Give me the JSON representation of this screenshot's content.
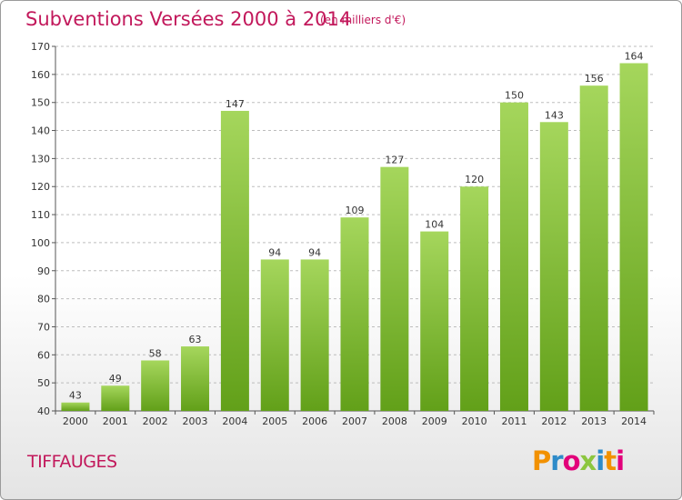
{
  "header": {
    "title": "Subventions Versées 2000 à 2014",
    "subtitle": "(en milliers d'€)"
  },
  "footer": {
    "commune": "TIFFAUGES",
    "logo_text": "Proxiti",
    "logo_colors": [
      "#f29100",
      "#2e8bc9",
      "#e2007a",
      "#8cc63f",
      "#2e8bc9",
      "#f29100",
      "#e2007a"
    ]
  },
  "colors": {
    "bar_light": "#a5d65c",
    "bar_dark": "#62a019",
    "accent": "#c2185b"
  },
  "chart_data": {
    "type": "bar",
    "title": "Subventions Versées 2000 à 2014",
    "subtitle": "(en milliers d'€)",
    "categories": [
      "2000",
      "2001",
      "2002",
      "2003",
      "2004",
      "2005",
      "2006",
      "2007",
      "2008",
      "2009",
      "2010",
      "2011",
      "2012",
      "2013",
      "2014"
    ],
    "values": [
      43,
      49,
      58,
      63,
      147,
      94,
      94,
      109,
      127,
      104,
      120,
      150,
      143,
      156,
      164
    ],
    "ylim": [
      40,
      170
    ],
    "yticks": [
      40,
      50,
      60,
      70,
      80,
      90,
      100,
      110,
      120,
      130,
      140,
      150,
      160,
      170
    ],
    "grid": true,
    "xlabel": "",
    "ylabel": ""
  }
}
